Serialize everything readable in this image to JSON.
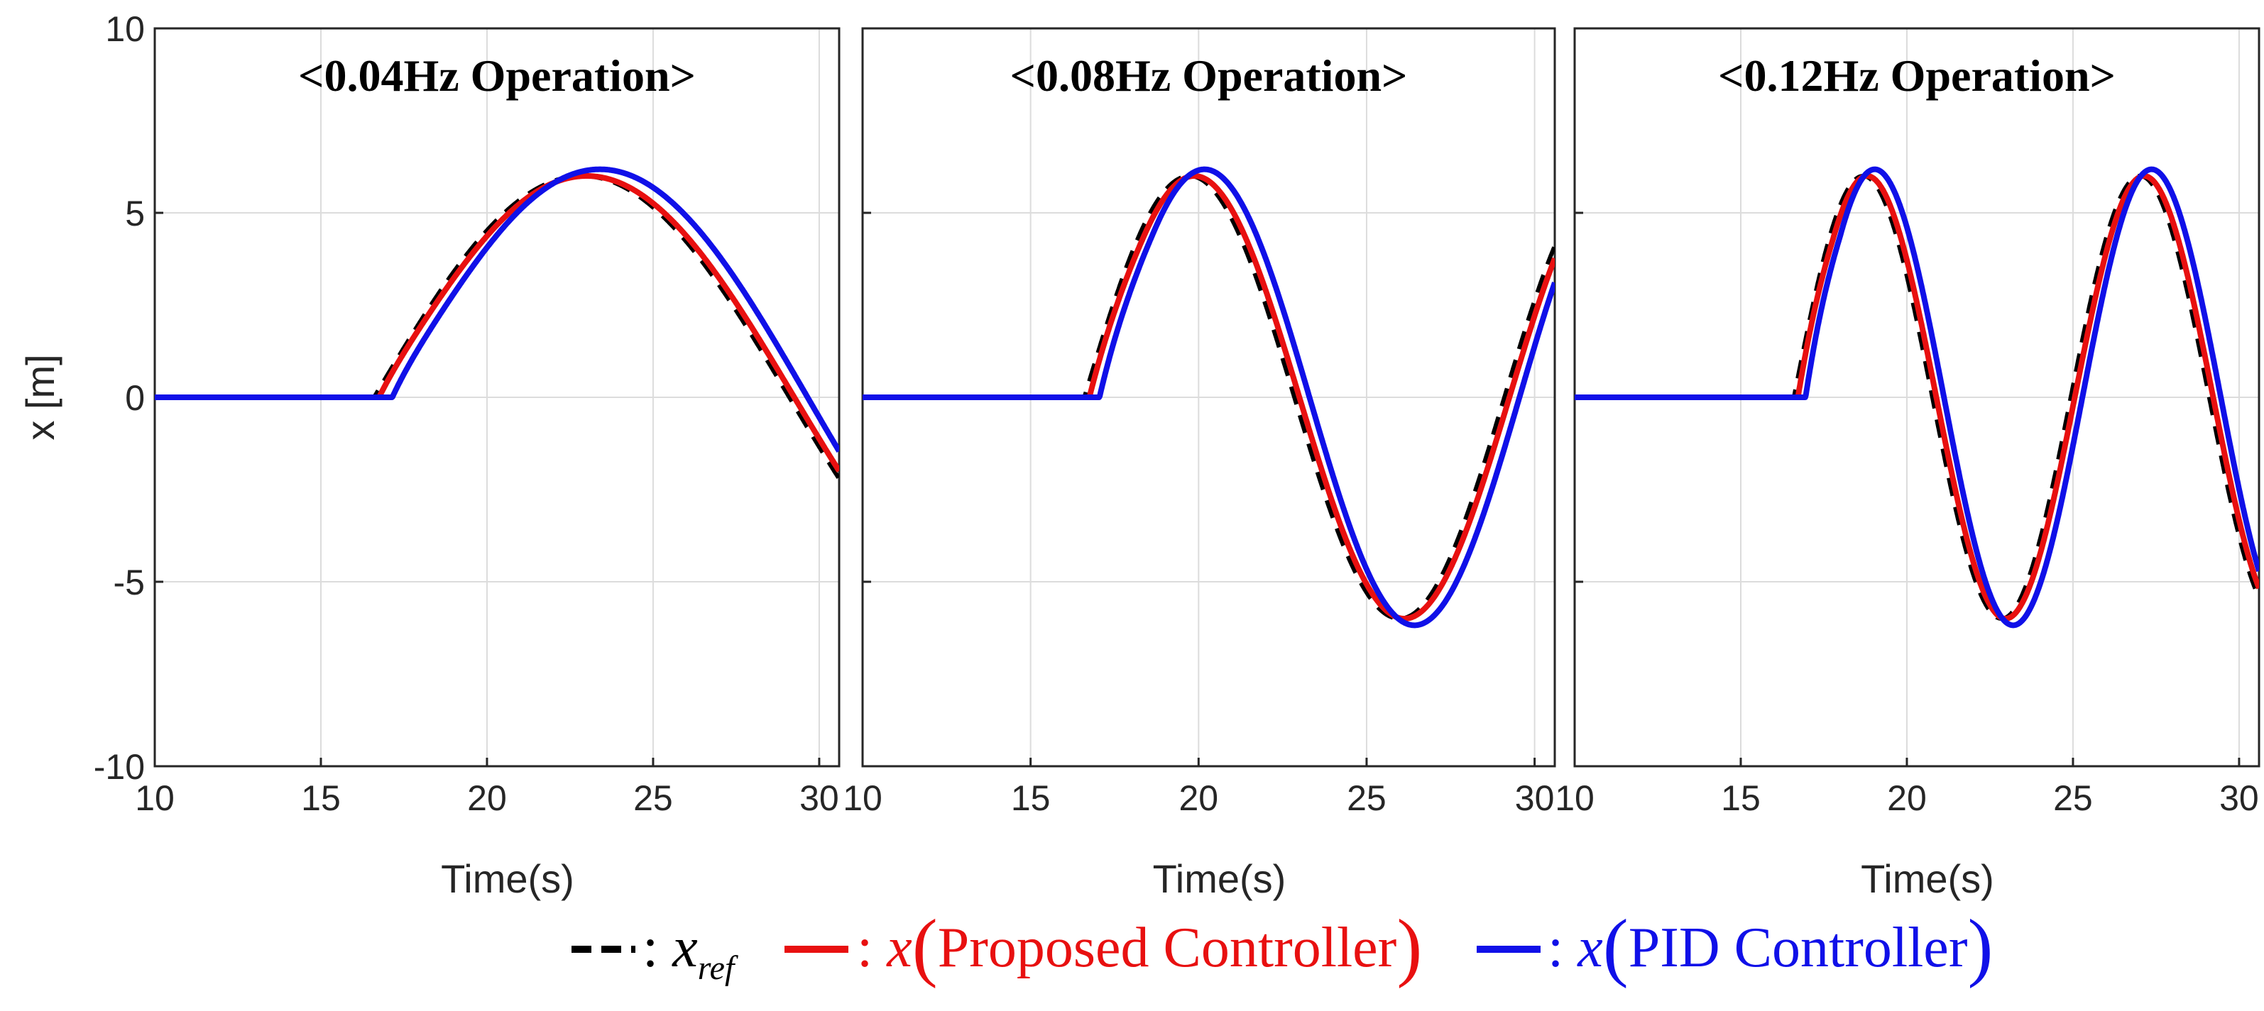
{
  "chart_data": [
    {
      "type": "line",
      "title": "<0.04Hz Operation>",
      "xlabel": "Time(s)",
      "ylabel": "x [m]",
      "xlim": [
        10,
        30.6
      ],
      "ylim": [
        -10,
        10
      ],
      "xticks": [
        "10",
        "15",
        "20",
        "25",
        "30"
      ],
      "yticks": [
        "10",
        "5",
        "0",
        "-5",
        "-10"
      ],
      "grid": true,
      "reference": {
        "t0": 16.6,
        "amplitude": 6,
        "frequency_hz": 0.04
      },
      "series": [
        {
          "key": "proposed",
          "color": "#e81010",
          "delay_s": 0.15,
          "overshoot": 0.3,
          "amp_scale": 1.0
        },
        {
          "key": "pid",
          "color": "#1010e8",
          "delay_s": 0.55,
          "overshoot": 0.4,
          "amp_scale": 1.03
        }
      ]
    },
    {
      "type": "line",
      "title": "<0.08Hz Operation>",
      "xlabel": "Time(s)",
      "ylabel": "",
      "xlim": [
        10,
        30.6
      ],
      "ylim": [
        -10,
        10
      ],
      "xticks": [
        "10",
        "15",
        "20",
        "25",
        "30"
      ],
      "yticks": [],
      "grid": true,
      "reference": {
        "t0": 16.6,
        "amplitude": 6,
        "frequency_hz": 0.08
      },
      "series": [
        {
          "key": "proposed",
          "color": "#e81010",
          "delay_s": 0.15,
          "overshoot": 0.3,
          "amp_scale": 1.0
        },
        {
          "key": "pid",
          "color": "#1010e8",
          "delay_s": 0.45,
          "overshoot": 0.4,
          "amp_scale": 1.03
        }
      ]
    },
    {
      "type": "line",
      "title": "<0.12Hz Operation>",
      "xlabel": "Time(s)",
      "ylabel": "",
      "xlim": [
        10,
        30.6
      ],
      "ylim": [
        -10,
        10
      ],
      "xticks": [
        "10",
        "15",
        "20",
        "25",
        "30"
      ],
      "yticks": [],
      "grid": true,
      "reference": {
        "t0": 16.6,
        "amplitude": 6,
        "frequency_hz": 0.12
      },
      "series": [
        {
          "key": "proposed",
          "color": "#e81010",
          "delay_s": 0.12,
          "overshoot": 0.3,
          "amp_scale": 1.0
        },
        {
          "key": "pid",
          "color": "#1010e8",
          "delay_s": 0.35,
          "overshoot": 0.4,
          "amp_scale": 1.03
        }
      ]
    }
  ],
  "legend": {
    "items": [
      {
        "key": "ref",
        "color": "#000000",
        "dashed": true,
        "sep": ":",
        "symbol": "x",
        "sub": "ref",
        "paren_open": "",
        "text": "",
        "paren_close": ""
      },
      {
        "key": "proposed",
        "color": "#e81010",
        "dashed": false,
        "sep": ":",
        "symbol": "x",
        "sub": "",
        "paren_open": "(",
        "text": "Proposed Controller",
        "paren_close": ")"
      },
      {
        "key": "pid",
        "color": "#1010e8",
        "dashed": false,
        "sep": ":",
        "symbol": "x",
        "sub": "",
        "paren_open": "(",
        "text": "PID Controller",
        "paren_close": ")"
      }
    ]
  }
}
